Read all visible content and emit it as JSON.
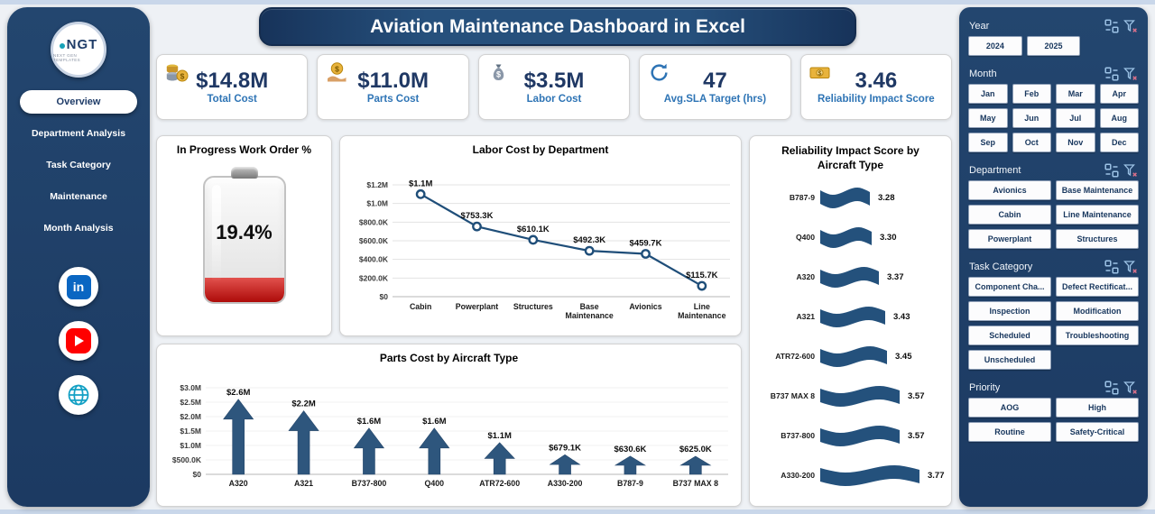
{
  "app": {
    "title": "Aviation Maintenance Dashboard in Excel"
  },
  "colors": {
    "navy": "#1f3c68",
    "steel_blue": "#2e74b5",
    "chart_blue": "#2e567d",
    "battery_red": "#b00d0b"
  },
  "sidebar": {
    "logo_text": "NGT",
    "logo_subtext": "NEXT GEN TEMPLATES",
    "items": [
      {
        "label": "Overview",
        "active": true
      },
      {
        "label": "Department Analysis",
        "active": false
      },
      {
        "label": "Task Category",
        "active": false
      },
      {
        "label": "Maintenance",
        "active": false
      },
      {
        "label": "Month Analysis",
        "active": false
      }
    ],
    "social": [
      {
        "name": "linkedin-icon"
      },
      {
        "name": "youtube-icon"
      },
      {
        "name": "website-icon"
      }
    ]
  },
  "kpis": [
    {
      "value": "$14.8M",
      "label": "Total Cost",
      "icon": "coins-icon"
    },
    {
      "value": "$11.0M",
      "label": "Parts Cost",
      "icon": "hand-coin-icon"
    },
    {
      "value": "$3.5M",
      "label": "Labor Cost",
      "icon": "money-bag-icon"
    },
    {
      "value": "47",
      "label": "Avg.SLA Target (hrs)",
      "icon": "sync-arrows-icon"
    },
    {
      "value": "3.46",
      "label": "Reliability Impact Score",
      "icon": "cash-icon"
    }
  ],
  "gauge": {
    "title": "In Progress Work Order %",
    "value": "19.4%",
    "percent": 19.4
  },
  "chart_data": [
    {
      "type": "line",
      "title": "Labor Cost by Department",
      "categories": [
        "Cabin",
        "Powerplant",
        "Structures",
        "Base Maintenance",
        "Avionics",
        "Line Maintenance"
      ],
      "values": [
        1100000,
        753300,
        610100,
        492300,
        459700,
        115700
      ],
      "labels": [
        "$1.1M",
        "$753.3K",
        "$610.1K",
        "$492.3K",
        "$459.7K",
        "$115.7K"
      ],
      "xlabel": "",
      "ylabel": "",
      "ylim": [
        0,
        1200000
      ],
      "ytick_values": [
        0,
        200000,
        400000,
        600000,
        800000,
        1000000,
        1200000
      ],
      "ytick_labels": [
        "$0",
        "$200.0K",
        "$400.0K",
        "$600.0K",
        "$800.0K",
        "$1.0M",
        "$1.2M"
      ],
      "grid": true,
      "legend": false
    },
    {
      "type": "bar",
      "title": "Parts Cost by Aircraft Type",
      "categories": [
        "A320",
        "A321",
        "B737-800",
        "Q400",
        "ATR72-600",
        "A330-200",
        "B787-9",
        "B737 MAX 8"
      ],
      "values": [
        2600000,
        2200000,
        1600000,
        1600000,
        1100000,
        679100,
        630600,
        625000
      ],
      "labels": [
        "$2.6M",
        "$2.2M",
        "$1.6M",
        "$1.6M",
        "$1.1M",
        "$679.1K",
        "$630.6K",
        "$625.0K"
      ],
      "xlabel": "",
      "ylabel": "",
      "ylim": [
        0,
        3000000
      ],
      "ytick_values": [
        0,
        500000,
        1000000,
        1500000,
        2000000,
        2500000,
        3000000
      ],
      "ytick_labels": [
        "$0",
        "$500.0K",
        "$1.0M",
        "$1.5M",
        "$2.0M",
        "$2.5M",
        "$3.0M"
      ],
      "grid": false,
      "legend": false
    },
    {
      "type": "funnel",
      "title": "Reliability Impact Score by Aircraft Type",
      "categories": [
        "B787-9",
        "Q400",
        "A320",
        "A321",
        "ATR72-600",
        "B737 MAX 8",
        "B737-800",
        "A330-200"
      ],
      "values": [
        3.28,
        3.3,
        3.37,
        3.43,
        3.45,
        3.57,
        3.57,
        3.77
      ],
      "legend": false
    }
  ],
  "slicers": [
    {
      "title": "Year",
      "cols": 3,
      "options": [
        "2024",
        "2025"
      ]
    },
    {
      "title": "Month",
      "cols": 4,
      "options": [
        "Jan",
        "Feb",
        "Mar",
        "Apr",
        "May",
        "Jun",
        "Jul",
        "Aug",
        "Sep",
        "Oct",
        "Nov",
        "Dec"
      ]
    },
    {
      "title": "Department",
      "cols": 2,
      "options": [
        "Avionics",
        "Base Maintenance",
        "Cabin",
        "Line Maintenance",
        "Powerplant",
        "Structures"
      ]
    },
    {
      "title": "Task Category",
      "cols": 2,
      "options": [
        "Component Cha...",
        "Defect Rectificat...",
        "Inspection",
        "Modification",
        "Scheduled",
        "Troubleshooting",
        "Unscheduled"
      ]
    },
    {
      "title": "Priority",
      "cols": 2,
      "options": [
        "AOG",
        "High",
        "Routine",
        "Safety-Critical"
      ]
    }
  ]
}
